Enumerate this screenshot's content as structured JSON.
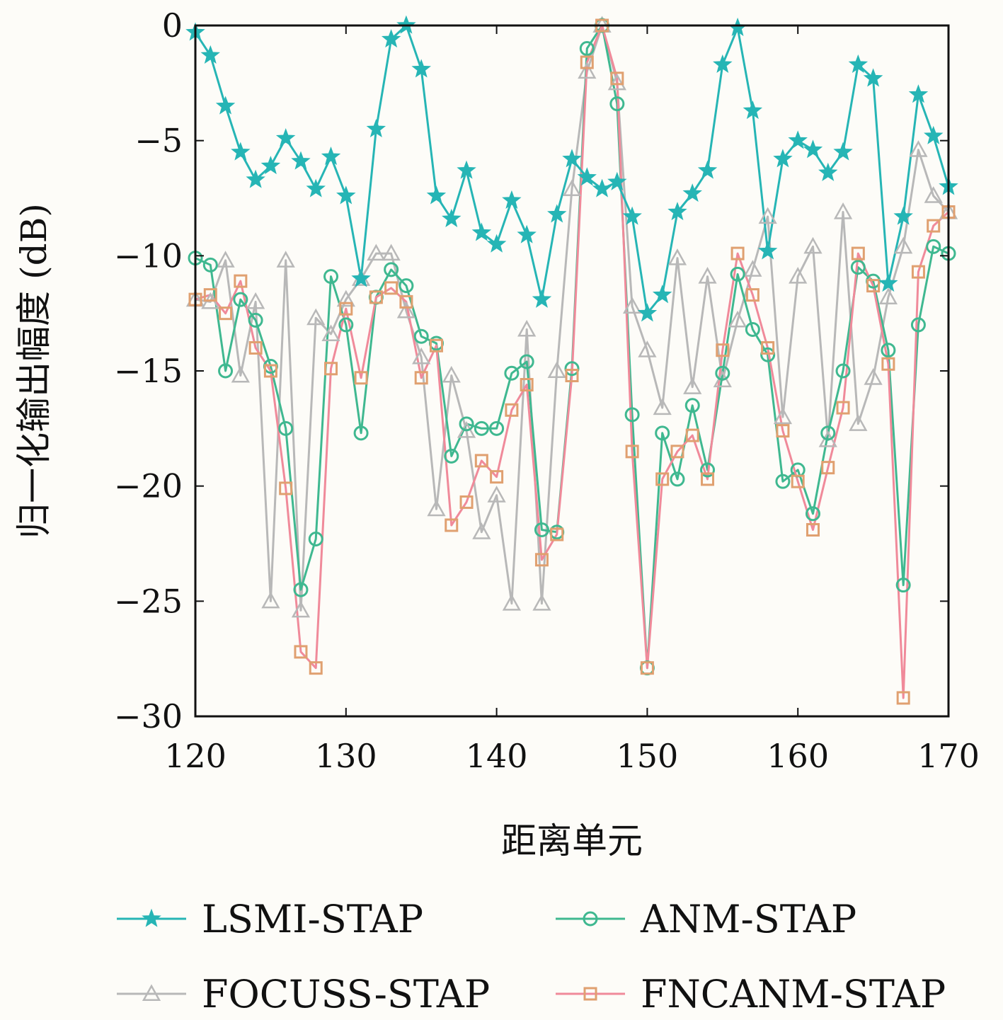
{
  "chart_data": {
    "type": "line",
    "title": "",
    "xlabel": "距离单元",
    "ylabel": "归一化输出幅度 (dB)",
    "xlim": [
      120,
      170
    ],
    "ylim": [
      -30,
      0
    ],
    "xticks": [
      120,
      130,
      140,
      150,
      160,
      170
    ],
    "yticks": [
      0,
      -5,
      -10,
      -15,
      -20,
      -25,
      -30
    ],
    "grid": false,
    "legend_position": "bottom",
    "x": [
      120,
      121,
      122,
      123,
      124,
      125,
      126,
      127,
      128,
      129,
      130,
      131,
      132,
      133,
      134,
      135,
      136,
      137,
      138,
      139,
      140,
      141,
      142,
      143,
      144,
      145,
      146,
      147,
      148,
      149,
      150,
      151,
      152,
      153,
      154,
      155,
      156,
      157,
      158,
      159,
      160,
      161,
      162,
      163,
      164,
      165,
      166,
      167,
      168,
      169,
      170
    ],
    "series": [
      {
        "name": "LSMI-STAP",
        "marker": "star",
        "color": "#26b5b5",
        "values": [
          -0.3,
          -1.3,
          -3.5,
          -5.5,
          -6.7,
          -6.1,
          -4.9,
          -5.9,
          -7.1,
          -5.7,
          -7.4,
          -11.0,
          -4.5,
          -0.6,
          0.0,
          -1.9,
          -7.4,
          -8.4,
          -6.3,
          -9.0,
          -9.5,
          -7.6,
          -9.1,
          -11.9,
          -8.2,
          -5.8,
          -6.6,
          -7.1,
          -6.8,
          -8.3,
          -12.5,
          -11.7,
          -8.1,
          -7.3,
          -6.3,
          -1.7,
          -0.1,
          -3.7,
          -9.8,
          -5.8,
          -5.0,
          -5.4,
          -6.4,
          -5.5,
          -1.7,
          -2.3,
          -11.2,
          -8.3,
          -3.0,
          -4.8,
          -7.0
        ]
      },
      {
        "name": "ANM-STAP",
        "marker": "circle",
        "color": "#3fb890",
        "values": [
          -10.1,
          -10.4,
          -15.0,
          -11.9,
          -12.8,
          -14.8,
          -17.5,
          -24.5,
          -22.3,
          -10.9,
          -13.0,
          -17.7,
          -11.8,
          -10.6,
          -11.3,
          -13.5,
          -13.8,
          -18.7,
          -17.3,
          -17.5,
          -17.5,
          -15.1,
          -14.6,
          -21.9,
          -22.0,
          -14.9,
          -1.0,
          0.0,
          -3.4,
          -16.9,
          -27.9,
          -17.7,
          -19.7,
          -16.5,
          -19.3,
          -15.1,
          -10.8,
          -13.2,
          -14.3,
          -19.8,
          -19.3,
          -21.2,
          -17.7,
          -15.0,
          -10.5,
          -11.1,
          -14.1,
          -24.3,
          -13.0,
          -9.6,
          -9.9
        ]
      },
      {
        "name": "FOCUSS-STAP",
        "marker": "triangle",
        "color": "#b8b8b8",
        "values": [
          -11.9,
          -12.0,
          -10.2,
          -15.2,
          -12.0,
          -25.0,
          -10.2,
          -25.4,
          -12.7,
          -13.4,
          -11.9,
          -11.0,
          -9.9,
          -9.9,
          -12.4,
          -14.4,
          -21.0,
          -15.2,
          -17.6,
          -22.0,
          -20.4,
          -25.1,
          -13.2,
          -25.1,
          -15.0,
          -7.1,
          -2.0,
          0.0,
          -2.5,
          -12.2,
          -14.1,
          -16.6,
          -10.1,
          -15.7,
          -10.9,
          -15.4,
          -12.8,
          -10.6,
          -8.3,
          -17.0,
          -10.9,
          -9.6,
          -18.0,
          -8.1,
          -17.3,
          -15.3,
          -11.8,
          -9.6,
          -5.4,
          -7.4,
          -8.1
        ]
      },
      {
        "name": "FNCANM-STAP",
        "marker": "square",
        "color": "#e0a070",
        "values": [
          -11.9,
          -11.7,
          -12.5,
          -11.1,
          -14.0,
          -15.0,
          -20.1,
          -27.2,
          -27.9,
          -14.9,
          -12.3,
          -15.3,
          -11.8,
          -11.4,
          -12.0,
          -15.3,
          -13.9,
          -21.7,
          -20.7,
          -18.9,
          -19.6,
          -16.7,
          -15.6,
          -23.2,
          -22.1,
          -15.2,
          -1.6,
          0.0,
          -2.3,
          -18.5,
          -27.9,
          -19.7,
          -18.5,
          -17.8,
          -19.7,
          -14.1,
          -9.9,
          -11.7,
          -14.0,
          -17.6,
          -19.8,
          -21.9,
          -19.2,
          -16.6,
          -9.9,
          -11.3,
          -14.7,
          -29.2,
          -10.7,
          -8.7,
          -8.1
        ]
      }
    ]
  }
}
